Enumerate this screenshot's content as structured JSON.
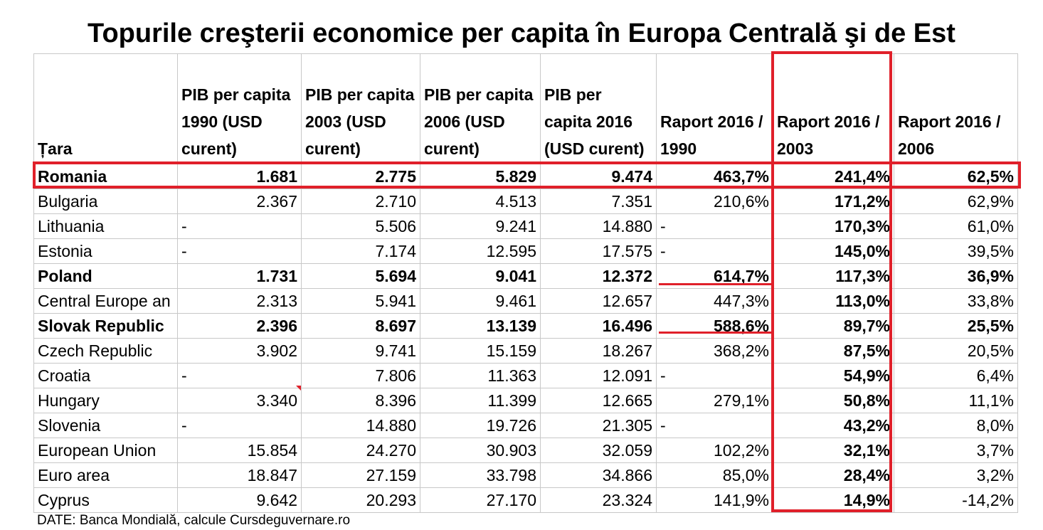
{
  "chart_data": {
    "type": "table",
    "title": "Topurile creşterii economice per capita în Europa Centrală şi de Est",
    "columns": [
      "Țara",
      "PIB per capita 1990 (USD curent)",
      "PIB per capita 2003 (USD curent)",
      "PIB per capita 2006 (USD curent)",
      "PIB per capita 2016 (USD curent)",
      "Raport 2016 / 1990",
      "Raport 2016 / 2003",
      "Raport 2016 / 2006"
    ],
    "rows": [
      [
        "Romania",
        "1.681",
        "2.775",
        "5.829",
        "9.474",
        "463,7%",
        "241,4%",
        "62,5%"
      ],
      [
        "Bulgaria",
        "2.367",
        "2.710",
        "4.513",
        "7.351",
        "210,6%",
        "171,2%",
        "62,9%"
      ],
      [
        "Lithuania",
        "-",
        "5.506",
        "9.241",
        "14.880",
        "-",
        "170,3%",
        "61,0%"
      ],
      [
        "Estonia",
        "-",
        "7.174",
        "12.595",
        "17.575",
        "-",
        "145,0%",
        "39,5%"
      ],
      [
        "Poland",
        "1.731",
        "5.694",
        "9.041",
        "12.372",
        "614,7%",
        "117,3%",
        "36,9%"
      ],
      [
        "Central Europe an",
        "2.313",
        "5.941",
        "9.461",
        "12.657",
        "447,3%",
        "113,0%",
        "33,8%"
      ],
      [
        "Slovak Republic",
        "2.396",
        "8.697",
        "13.139",
        "16.496",
        "588,6%",
        "89,7%",
        "25,5%"
      ],
      [
        "Czech Republic",
        "3.902",
        "9.741",
        "15.159",
        "18.267",
        "368,2%",
        "87,5%",
        "20,5%"
      ],
      [
        "Croatia",
        "-",
        "7.806",
        "11.363",
        "12.091",
        "-",
        "54,9%",
        "6,4%"
      ],
      [
        "Hungary",
        "3.340",
        "8.396",
        "11.399",
        "12.665",
        "279,1%",
        "50,8%",
        "11,1%"
      ],
      [
        "Slovenia",
        "-",
        "14.880",
        "19.726",
        "21.305",
        "-",
        "43,2%",
        "8,0%"
      ],
      [
        "European Union",
        "15.854",
        "24.270",
        "30.903",
        "32.059",
        "102,2%",
        "32,1%",
        "3,7%"
      ],
      [
        "Euro area",
        "18.847",
        "27.159",
        "33.798",
        "34.866",
        "85,0%",
        "28,4%",
        "3,2%"
      ],
      [
        "Cyprus",
        "9.642",
        "20.293",
        "27.170",
        "23.324",
        "141,9%",
        "14,9%",
        "-14,2%"
      ]
    ],
    "bold_rows": [
      0,
      4,
      6
    ],
    "highlighted_row": 0,
    "highlighted_column": 6,
    "source": "DATE: Banca Mondială, calcule Cursdeguvernare.ro",
    "accent_color": "#e0202a",
    "grid_color": "#c8c8c8"
  }
}
